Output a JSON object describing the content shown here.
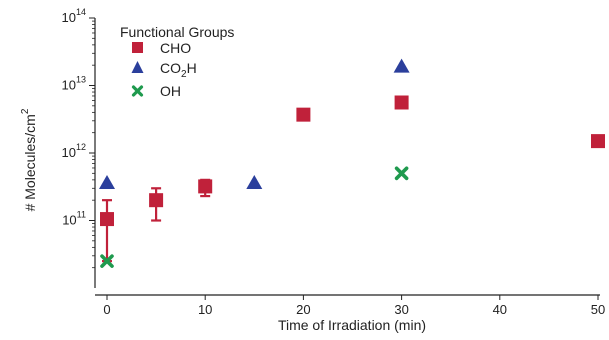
{
  "chart_data": {
    "type": "scatter",
    "xlabel": "Time of Irradiation (min)",
    "ylabel": "# Molecules/cm",
    "ylabel_sup": "2",
    "xlim": [
      0,
      50
    ],
    "ylim": [
      10000000000.0,
      100000000000000.0
    ],
    "yscale": "log",
    "x_ticks": [
      0,
      10,
      20,
      30,
      40,
      50
    ],
    "y_ticks": [
      {
        "base": "10",
        "exp": "11",
        "value": 100000000000.0
      },
      {
        "base": "10",
        "exp": "12",
        "value": 1000000000000.0
      },
      {
        "base": "10",
        "exp": "13",
        "value": 10000000000000.0
      },
      {
        "base": "10",
        "exp": "14",
        "value": 100000000000000.0
      }
    ],
    "grid": false,
    "legend_position": "top-left",
    "legend": {
      "title": "Functional Groups",
      "entries": [
        {
          "label": "CHO",
          "marker": "square",
          "color": "#c0213a"
        },
        {
          "label": "CO",
          "sub": "2",
          "suffix": "H",
          "marker": "triangle",
          "color": "#2b3f9c"
        },
        {
          "label": "OH",
          "marker": "x",
          "color": "#1f9a4e"
        }
      ]
    },
    "series": [
      {
        "name": "CHO",
        "marker": "square",
        "color": "#c0213a",
        "points": [
          {
            "x": 0,
            "y": 105000000000.0,
            "err_low": 25000000000.0,
            "err_high": 200000000000.0
          },
          {
            "x": 5,
            "y": 200000000000.0,
            "err_low": 100000000000.0,
            "err_high": 300000000000.0
          },
          {
            "x": 10,
            "y": 320000000000.0,
            "err_low": 230000000000.0,
            "err_high": 400000000000.0
          },
          {
            "x": 20,
            "y": 3700000000000.0
          },
          {
            "x": 30,
            "y": 5600000000000.0
          },
          {
            "x": 50,
            "y": 1500000000000.0
          }
        ]
      },
      {
        "name": "CO2H",
        "marker": "triangle",
        "color": "#2b3f9c",
        "points": [
          {
            "x": 0,
            "y": 360000000000.0
          },
          {
            "x": 15,
            "y": 360000000000.0
          },
          {
            "x": 30,
            "y": 19000000000000.0
          }
        ]
      },
      {
        "name": "OH",
        "marker": "x",
        "color": "#1f9a4e",
        "points": [
          {
            "x": 0,
            "y": 25000000000.0
          },
          {
            "x": 30,
            "y": 500000000000.0
          }
        ]
      }
    ]
  }
}
